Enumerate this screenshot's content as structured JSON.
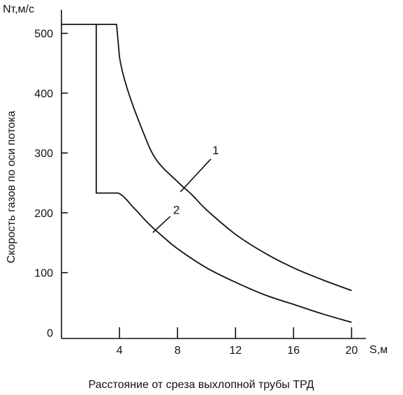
{
  "chart_data": {
    "type": "line",
    "title": "",
    "ylabel_top": "Nт,м/с",
    "ylabel": "Скорость газов по оси потока",
    "xlabel_unit": "S,м",
    "xlabel": "Расстояние от среза выхлопной трубы ТРД",
    "xlim": [
      0,
      20.8
    ],
    "ylim": [
      -10,
      530
    ],
    "x_ticks": [
      4,
      8,
      12,
      16,
      20
    ],
    "x_tick_labels": [
      "4",
      "8",
      "12",
      "16",
      "20"
    ],
    "y_ticks": [
      0,
      100,
      200,
      300,
      400,
      500
    ],
    "y_tick_labels": [
      "0",
      "100",
      "200",
      "300",
      "400",
      "500"
    ],
    "grid": false,
    "series": [
      {
        "name": "1",
        "x": [
          0,
          2.4,
          3.8,
          4.0,
          4.5,
          5.5,
          6.5,
          8.0,
          9.0,
          10.0,
          12.0,
          14.0,
          16.0,
          18.0,
          20.0
        ],
        "y": [
          515,
          515,
          515,
          460,
          410,
          343,
          290,
          252,
          230,
          205,
          164,
          133,
          108,
          88,
          70
        ]
      },
      {
        "name": "2",
        "x": [
          2.4,
          2.4,
          3.9,
          5.0,
          6.0,
          7.0,
          8.0,
          10.0,
          12.0,
          14.0,
          16.0,
          18.0,
          20.0
        ],
        "y": [
          515,
          233,
          233,
          208,
          182,
          160,
          140,
          108,
          84,
          63,
          47,
          31,
          17
        ]
      }
    ],
    "series_labels": [
      "1",
      "2"
    ]
  }
}
